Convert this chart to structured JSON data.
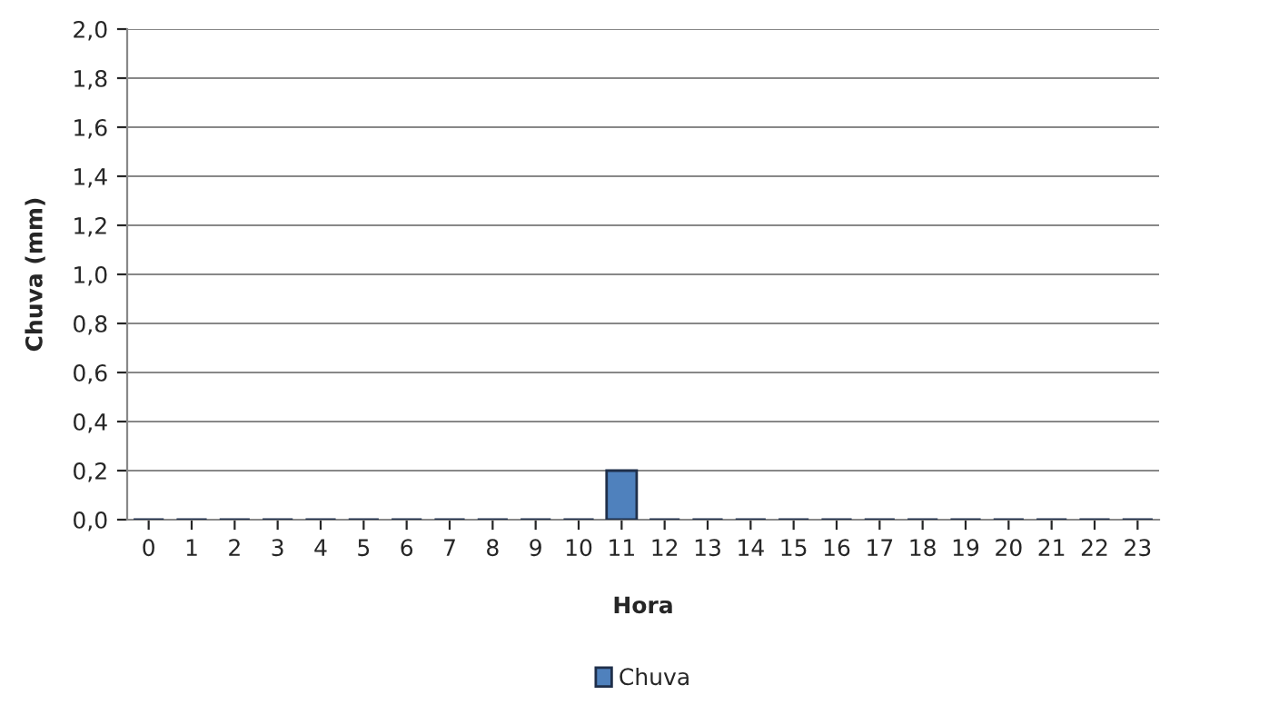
{
  "chart_data": {
    "type": "bar",
    "xlabel": "Hora",
    "ylabel": "Chuva (mm)",
    "categories": [
      "0",
      "1",
      "2",
      "3",
      "4",
      "5",
      "6",
      "7",
      "8",
      "9",
      "10",
      "11",
      "12",
      "13",
      "14",
      "15",
      "16",
      "17",
      "18",
      "19",
      "20",
      "21",
      "22",
      "23"
    ],
    "series": [
      {
        "name": "Chuva",
        "color": "#4f81bd",
        "values": [
          0,
          0,
          0,
          0,
          0,
          0,
          0,
          0,
          0,
          0,
          0,
          0.2,
          0,
          0,
          0,
          0,
          0,
          0,
          0,
          0,
          0,
          0,
          0,
          0
        ]
      }
    ],
    "ylim": [
      0,
      2
    ],
    "yticks": [
      {
        "value": 0,
        "label": "0,0"
      },
      {
        "value": 0.2,
        "label": "0,2"
      },
      {
        "value": 0.4,
        "label": "0,4"
      },
      {
        "value": 0.6,
        "label": "0,6"
      },
      {
        "value": 0.8,
        "label": "0,8"
      },
      {
        "value": 1.0,
        "label": "1,0"
      },
      {
        "value": 1.2,
        "label": "1,2"
      },
      {
        "value": 1.4,
        "label": "1,4"
      },
      {
        "value": 1.6,
        "label": "1,6"
      },
      {
        "value": 1.8,
        "label": "1,8"
      },
      {
        "value": 2.0,
        "label": "2,0"
      }
    ],
    "grid": "y",
    "legend": "bottom"
  }
}
